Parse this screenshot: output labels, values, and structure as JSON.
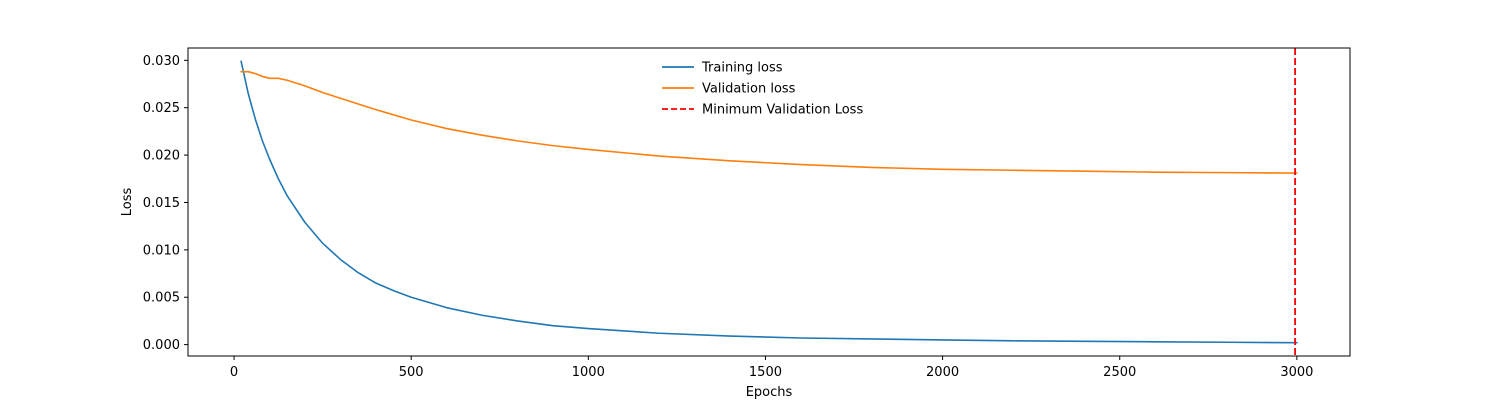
{
  "chart_data": {
    "type": "line",
    "title": "",
    "xlabel": "Epochs",
    "ylabel": "Loss",
    "xlim": [
      -130,
      3150
    ],
    "ylim": [
      -0.0012,
      0.0313
    ],
    "x_ticks": [
      {
        "value": 0,
        "label": "0"
      },
      {
        "value": 500,
        "label": "500"
      },
      {
        "value": 1000,
        "label": "1000"
      },
      {
        "value": 1500,
        "label": "1500"
      },
      {
        "value": 2000,
        "label": "2000"
      },
      {
        "value": 2500,
        "label": "2500"
      },
      {
        "value": 3000,
        "label": "3000"
      }
    ],
    "y_ticks": [
      {
        "value": 0.0,
        "label": "0.000"
      },
      {
        "value": 0.005,
        "label": "0.005"
      },
      {
        "value": 0.01,
        "label": "0.010"
      },
      {
        "value": 0.015,
        "label": "0.015"
      },
      {
        "value": 0.02,
        "label": "0.020"
      },
      {
        "value": 0.025,
        "label": "0.025"
      },
      {
        "value": 0.03,
        "label": "0.030"
      }
    ],
    "grid": false,
    "legend_position": "top-center",
    "series": [
      {
        "name": "Training loss",
        "color": "#1f77b4",
        "style": "solid",
        "x": [
          20,
          40,
          60,
          80,
          100,
          125,
          150,
          200,
          250,
          300,
          350,
          400,
          450,
          500,
          600,
          700,
          800,
          900,
          1000,
          1200,
          1400,
          1600,
          1800,
          2000,
          2200,
          2400,
          2600,
          2800,
          3000
        ],
        "y": [
          0.0299,
          0.0265,
          0.0238,
          0.0215,
          0.0196,
          0.0175,
          0.0157,
          0.0129,
          0.0107,
          0.009,
          0.0076,
          0.0065,
          0.0057,
          0.005,
          0.0039,
          0.0031,
          0.0025,
          0.002,
          0.0017,
          0.0012,
          0.0009,
          0.0007,
          0.0006,
          0.0005,
          0.0004,
          0.00035,
          0.0003,
          0.00025,
          0.0002
        ]
      },
      {
        "name": "Validation loss",
        "color": "#ff7f0e",
        "style": "solid",
        "x": [
          20,
          40,
          60,
          80,
          100,
          125,
          150,
          200,
          250,
          300,
          400,
          500,
          600,
          700,
          800,
          900,
          1000,
          1200,
          1400,
          1600,
          1800,
          2000,
          2200,
          2400,
          2600,
          2800,
          3000
        ],
        "y": [
          0.0288,
          0.0288,
          0.0286,
          0.0283,
          0.0281,
          0.0281,
          0.0279,
          0.0273,
          0.0266,
          0.026,
          0.0248,
          0.0237,
          0.0228,
          0.0221,
          0.0215,
          0.021,
          0.0206,
          0.0199,
          0.0194,
          0.019,
          0.0187,
          0.0185,
          0.0184,
          0.0183,
          0.0182,
          0.01815,
          0.0181
        ]
      }
    ],
    "vlines": [
      {
        "name": "Minimum Validation Loss",
        "x": 2995,
        "color": "#ff0000",
        "style": "dashed"
      }
    ]
  }
}
